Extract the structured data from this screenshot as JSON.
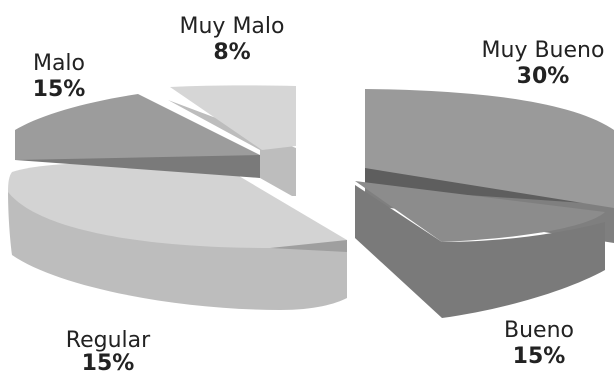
{
  "chart_data": {
    "type": "pie",
    "style": "3d-exploded",
    "slices": [
      {
        "name": "Muy Bueno",
        "value": 30,
        "value_label": "30%",
        "color": "#9a9a9a"
      },
      {
        "name": "Bueno",
        "value": 15,
        "value_label": "15%",
        "color": "#8c8c8c"
      },
      {
        "name": "Regular",
        "value": 15,
        "value_label": "15%",
        "color": "#cfcfcf"
      },
      {
        "name": "Malo",
        "value": 15,
        "value_label": "15%",
        "color": "#9c9c9c"
      },
      {
        "name": "Muy Malo",
        "value": 8,
        "value_label": "8%",
        "color": "#d6d6d6"
      }
    ],
    "legend": "none",
    "labels": "outside"
  }
}
